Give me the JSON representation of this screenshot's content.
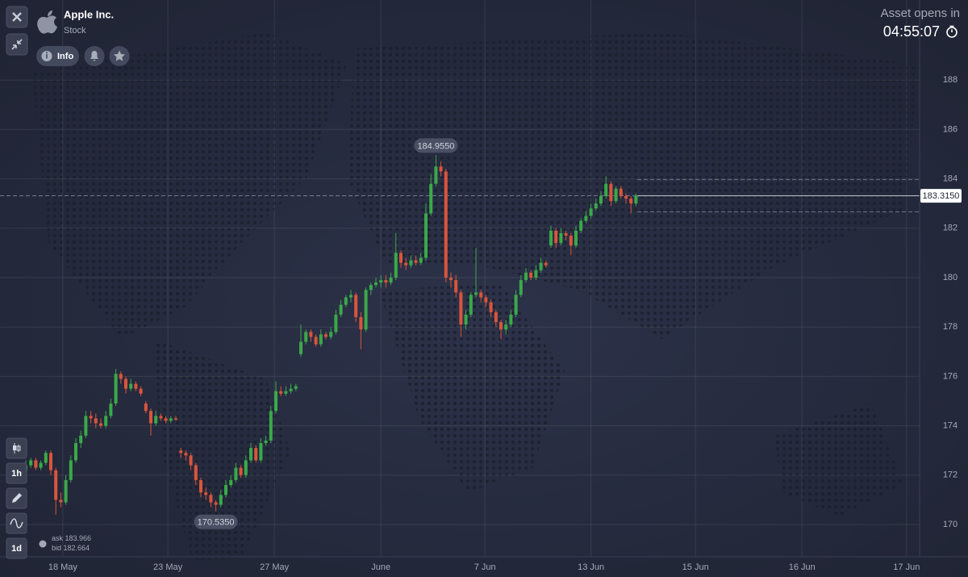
{
  "header": {
    "title": "Apple Inc.",
    "subtitle": "Stock",
    "info": "Info",
    "status": "Asset opens in",
    "countdown": "04:55:07"
  },
  "toolbar": {
    "timeframe": "1h",
    "period": "1d"
  },
  "quote": {
    "ask_label": "ask",
    "ask": 183.966,
    "bid_label": "bid",
    "bid": 182.664
  },
  "chart_data": {
    "type": "candlestick",
    "up_color": "#3aa94a",
    "down_color": "#d9553c",
    "xlim": [
      -5.16,
      178.71
    ],
    "ylim": [
      168.693,
      191.242
    ],
    "grid": true,
    "yticks": [
      170,
      172,
      174,
      176,
      178,
      180,
      182,
      184,
      186,
      188
    ],
    "xticks": [
      {
        "value": 7.4,
        "label": "18 May"
      },
      {
        "value": 28.4,
        "label": "23 May"
      },
      {
        "value": 49.7,
        "label": "27 May"
      },
      {
        "value": 71,
        "label": "June"
      },
      {
        "value": 91.8,
        "label": "7 Jun"
      },
      {
        "value": 113,
        "label": "13 Jun"
      },
      {
        "value": 133.9,
        "label": "15 Jun"
      },
      {
        "value": 155.2,
        "label": "16 Jun"
      },
      {
        "value": 176.1,
        "label": "17 Jun"
      }
    ],
    "annotations": [
      {
        "value": 184.955,
        "label": "184.9550"
      },
      {
        "value": 170.535,
        "label": "170.5350"
      }
    ],
    "last_price": {
      "value": 183.315,
      "label": "183.3150"
    },
    "x": [
      0,
      1,
      2,
      3,
      4,
      5,
      6,
      7,
      8,
      9,
      10,
      11,
      12,
      13,
      14,
      15,
      16,
      17,
      18,
      19,
      20,
      21,
      22,
      23,
      24,
      25,
      26,
      27,
      28,
      29,
      30,
      31,
      32,
      33,
      34,
      35,
      36,
      37,
      38,
      39,
      40,
      41,
      42,
      43,
      44,
      45,
      46,
      47,
      48,
      49,
      50,
      51,
      52,
      53,
      54,
      55,
      56,
      57,
      58,
      59,
      60,
      61,
      62,
      63,
      64,
      65,
      66,
      67,
      68,
      69,
      70,
      71,
      72,
      73,
      74,
      75,
      76,
      77,
      78,
      79,
      80,
      81,
      82,
      83,
      84,
      85,
      86,
      87,
      88,
      89,
      90,
      91,
      92,
      93,
      94,
      95,
      96,
      97,
      98,
      99,
      100,
      101,
      102,
      103,
      104,
      105,
      106,
      107,
      108,
      109,
      110,
      111,
      112,
      113,
      114,
      115,
      116,
      117,
      118,
      119,
      120,
      121,
      122
    ],
    "candles": [
      [
        172.2,
        172.6,
        172.1,
        172.4
      ],
      [
        172.4,
        172.7,
        172.3,
        172.6
      ],
      [
        172.6,
        172.7,
        172.2,
        172.3
      ],
      [
        172.3,
        172.6,
        172.2,
        172.5
      ],
      [
        172.5,
        173.0,
        172.4,
        172.9
      ],
      [
        172.9,
        173.0,
        172.0,
        172.2
      ],
      [
        172.2,
        172.3,
        170.4,
        171.0
      ],
      [
        171.0,
        171.3,
        170.7,
        170.9
      ],
      [
        170.9,
        172.0,
        170.8,
        171.8
      ],
      [
        171.8,
        172.8,
        171.7,
        172.6
      ],
      [
        172.6,
        173.5,
        172.5,
        173.3
      ],
      [
        173.3,
        173.8,
        173.1,
        173.6
      ],
      [
        173.6,
        174.6,
        173.5,
        174.4
      ],
      [
        174.4,
        174.6,
        174.1,
        174.3
      ],
      [
        174.3,
        174.5,
        173.9,
        174.1
      ],
      [
        174.1,
        174.3,
        173.9,
        174.0
      ],
      [
        174.0,
        174.6,
        173.9,
        174.4
      ],
      [
        174.4,
        175.1,
        174.3,
        174.9
      ],
      [
        174.9,
        176.3,
        174.8,
        176.1
      ],
      [
        176.1,
        176.2,
        175.7,
        175.9
      ],
      [
        175.9,
        176.0,
        175.3,
        175.5
      ],
      [
        175.5,
        175.9,
        175.4,
        175.7
      ],
      [
        175.7,
        175.8,
        175.4,
        175.5
      ],
      [
        175.5,
        175.6,
        175.2,
        175.3
      ],
      [
        174.9,
        175.0,
        174.5,
        174.6
      ],
      [
        174.6,
        174.7,
        173.6,
        174.1
      ],
      [
        174.1,
        174.6,
        174.0,
        174.4
      ],
      [
        174.4,
        174.5,
        174.2,
        174.3
      ],
      [
        174.3,
        174.4,
        174.1,
        174.2
      ],
      [
        174.2,
        174.4,
        174.1,
        174.3
      ],
      [
        174.3,
        174.4,
        174.2,
        174.25
      ],
      [
        173.0,
        173.1,
        172.7,
        172.9
      ],
      [
        172.9,
        173.0,
        172.6,
        172.8
      ],
      [
        172.8,
        172.9,
        172.2,
        172.4
      ],
      [
        172.4,
        172.5,
        171.6,
        171.8
      ],
      [
        171.8,
        171.9,
        171.1,
        171.3
      ],
      [
        171.3,
        171.5,
        171.0,
        171.2
      ],
      [
        171.2,
        171.3,
        170.7,
        170.9
      ],
      [
        170.9,
        171.0,
        170.535,
        170.8
      ],
      [
        170.8,
        171.4,
        170.7,
        171.2
      ],
      [
        171.2,
        171.8,
        171.1,
        171.6
      ],
      [
        171.6,
        172.0,
        171.5,
        171.8
      ],
      [
        171.8,
        172.5,
        171.7,
        172.3
      ],
      [
        172.3,
        172.4,
        171.9,
        172.0
      ],
      [
        172.0,
        172.8,
        171.9,
        172.6
      ],
      [
        172.6,
        173.3,
        172.5,
        173.1
      ],
      [
        173.1,
        173.2,
        172.5,
        172.6
      ],
      [
        172.6,
        173.5,
        172.5,
        173.3
      ],
      [
        173.3,
        173.6,
        173.2,
        173.4
      ],
      [
        173.4,
        174.8,
        173.3,
        174.6
      ],
      [
        174.6,
        175.8,
        174.5,
        175.4
      ],
      [
        175.4,
        175.6,
        175.2,
        175.3
      ],
      [
        175.3,
        175.6,
        175.2,
        175.4
      ],
      [
        175.4,
        175.7,
        175.3,
        175.5
      ],
      [
        175.5,
        175.7,
        175.4,
        175.6
      ],
      [
        176.9,
        178.1,
        176.8,
        177.4
      ],
      [
        177.4,
        177.9,
        177.3,
        177.8
      ],
      [
        177.8,
        177.9,
        177.4,
        177.6
      ],
      [
        177.6,
        177.7,
        177.2,
        177.3
      ],
      [
        177.3,
        177.9,
        177.2,
        177.7
      ],
      [
        177.7,
        177.8,
        177.5,
        177.6
      ],
      [
        177.6,
        178.0,
        177.5,
        177.8
      ],
      [
        177.8,
        178.7,
        177.7,
        178.5
      ],
      [
        178.5,
        179.1,
        178.4,
        178.9
      ],
      [
        178.9,
        179.3,
        178.8,
        179.2
      ],
      [
        179.2,
        179.5,
        179.0,
        179.3
      ],
      [
        179.3,
        179.4,
        178.2,
        178.4
      ],
      [
        178.4,
        178.6,
        177.1,
        177.9
      ],
      [
        177.9,
        179.6,
        177.8,
        179.5
      ],
      [
        179.5,
        179.8,
        179.3,
        179.7
      ],
      [
        179.7,
        180.0,
        179.6,
        179.8
      ],
      [
        179.8,
        180.1,
        179.6,
        179.9
      ],
      [
        179.9,
        180.1,
        179.6,
        179.8
      ],
      [
        179.8,
        180.2,
        179.7,
        180.0
      ],
      [
        180.0,
        181.8,
        179.9,
        181.0
      ],
      [
        181.0,
        181.1,
        180.4,
        180.6
      ],
      [
        180.6,
        180.8,
        180.3,
        180.5
      ],
      [
        180.5,
        180.9,
        180.4,
        180.7
      ],
      [
        180.7,
        180.9,
        180.5,
        180.6
      ],
      [
        180.6,
        181.0,
        180.5,
        180.8
      ],
      [
        180.8,
        183.0,
        180.7,
        182.6
      ],
      [
        182.6,
        184.2,
        182.5,
        183.8
      ],
      [
        183.8,
        184.955,
        183.7,
        184.5
      ],
      [
        184.5,
        184.7,
        184.1,
        184.3
      ],
      [
        184.3,
        184.4,
        179.8,
        180.0
      ],
      [
        180.0,
        180.2,
        179.6,
        179.9
      ],
      [
        179.9,
        180.1,
        179.2,
        179.4
      ],
      [
        179.4,
        179.5,
        177.6,
        178.1
      ],
      [
        178.1,
        178.7,
        177.9,
        178.5
      ],
      [
        178.5,
        179.4,
        178.4,
        179.3
      ],
      [
        179.3,
        181.2,
        179.2,
        179.4
      ],
      [
        179.4,
        179.5,
        179.0,
        179.2
      ],
      [
        179.2,
        179.3,
        178.8,
        179.0
      ],
      [
        179.0,
        179.1,
        178.4,
        178.6
      ],
      [
        178.6,
        178.7,
        178.0,
        178.2
      ],
      [
        178.2,
        178.3,
        177.5,
        177.9
      ],
      [
        177.9,
        178.3,
        177.7,
        178.1
      ],
      [
        178.1,
        178.7,
        178.0,
        178.5
      ],
      [
        178.5,
        179.5,
        178.4,
        179.3
      ],
      [
        179.3,
        180.1,
        179.2,
        179.9
      ],
      [
        179.9,
        180.4,
        179.8,
        180.2
      ],
      [
        180.2,
        180.3,
        179.9,
        180.0
      ],
      [
        180.0,
        180.5,
        179.9,
        180.3
      ],
      [
        180.3,
        180.8,
        180.2,
        180.6
      ],
      [
        180.6,
        180.7,
        180.4,
        180.5
      ],
      [
        181.3,
        182.1,
        181.2,
        181.9
      ],
      [
        181.9,
        182.0,
        181.2,
        181.4
      ],
      [
        181.4,
        182.0,
        181.3,
        181.8
      ],
      [
        181.8,
        181.9,
        181.5,
        181.7
      ],
      [
        181.7,
        181.8,
        180.9,
        181.3
      ],
      [
        181.3,
        182.1,
        181.2,
        181.9
      ],
      [
        181.9,
        182.4,
        181.8,
        182.3
      ],
      [
        182.3,
        182.7,
        182.2,
        182.5
      ],
      [
        182.5,
        183.0,
        182.4,
        182.8
      ],
      [
        182.8,
        183.2,
        182.7,
        183.0
      ],
      [
        183.0,
        183.5,
        182.9,
        183.3
      ],
      [
        183.3,
        184.1,
        183.2,
        183.8
      ],
      [
        183.8,
        183.9,
        182.9,
        183.1
      ],
      [
        183.1,
        183.7,
        183.0,
        183.6
      ],
      [
        183.6,
        183.7,
        183.2,
        183.3
      ],
      [
        183.3,
        183.4,
        183.0,
        183.2
      ],
      [
        183.2,
        183.3,
        182.6,
        183.0
      ],
      [
        183.0,
        183.4,
        182.9,
        183.315
      ]
    ]
  }
}
